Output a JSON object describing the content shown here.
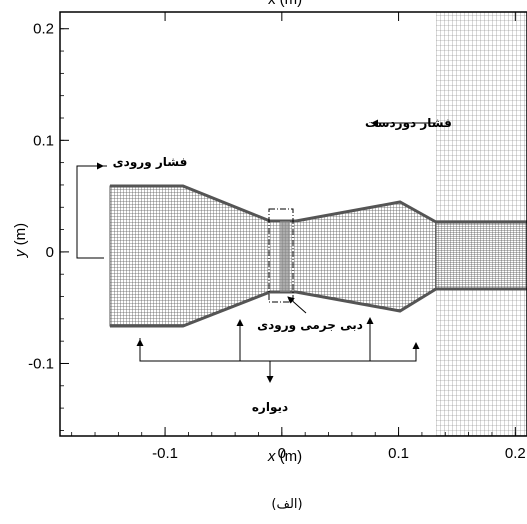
{
  "figure": {
    "top_axis_label": "x (m)",
    "x_axis": {
      "var": "x",
      "unit": " (m)",
      "ticks": [
        {
          "value": -0.1,
          "label": "-0.1"
        },
        {
          "value": 0,
          "label": "0"
        },
        {
          "value": 0.1,
          "label": "0.1"
        },
        {
          "value": 0.2,
          "label": "0.2"
        }
      ],
      "range": [
        -0.19,
        0.21
      ]
    },
    "y_axis": {
      "var": "y",
      "unit": " (m)",
      "ticks": [
        {
          "value": 0.2,
          "label": "0.2"
        },
        {
          "value": 0.1,
          "label": "0.1"
        },
        {
          "value": 0,
          "label": "0"
        },
        {
          "value": -0.1,
          "label": "-0.1"
        }
      ],
      "range": [
        -0.165,
        0.215
      ]
    },
    "annotations": {
      "far_field_pressure": "فشار دوردست",
      "inlet_pressure": "فشار ورودی",
      "inlet_mass_flow": "دبی جرمی ورودی",
      "wall": "دیواره"
    },
    "caption": "(الف)",
    "colors": {
      "mesh": "#444444",
      "frame": "#000000",
      "background": "#ffffff"
    }
  }
}
